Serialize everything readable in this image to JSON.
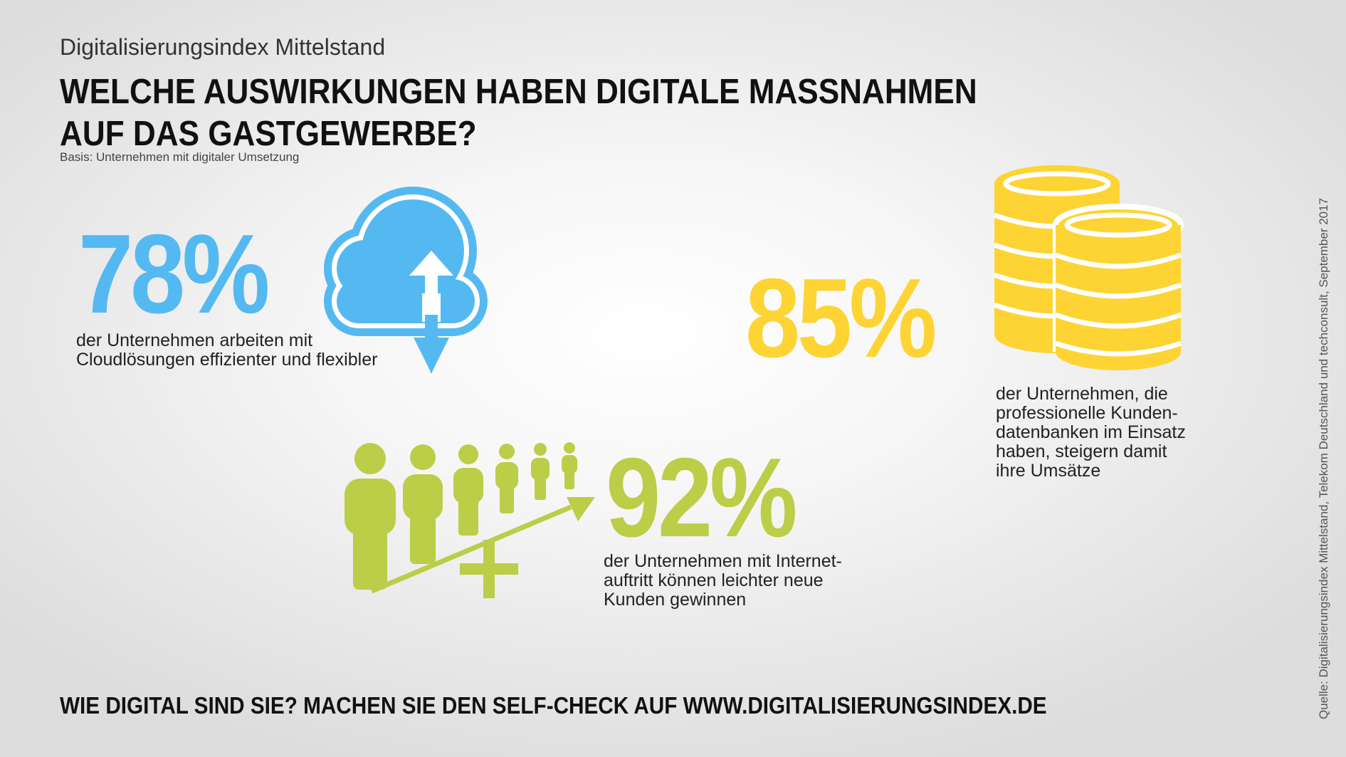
{
  "header": {
    "subtitle": "Digitalisierungsindex Mittelstand",
    "headline_line1": "WELCHE AUSWIRKUNGEN HABEN DIGITALE MASSNAHMEN",
    "headline_line2": "AUF DAS GASTGEWERBE?",
    "basis": "Basis: Unternehmen mit digitaler Umsetzung"
  },
  "stats": {
    "cloud": {
      "value": "78%",
      "text_line1": "der Unternehmen arbeiten mit",
      "text_line2": "Cloudlösungen effizienter und flexibler",
      "color": "#55b9f1",
      "icon": "cloud-upload-download-icon"
    },
    "database": {
      "value": "85%",
      "text_line1": "der Unternehmen, die",
      "text_line2": "professionelle Kunden-",
      "text_line3": "datenbanken im Einsatz",
      "text_line4": "haben, steigern damit",
      "text_line5": "ihre Umsätze",
      "color": "#fdd433",
      "icon": "coin-stacks-icon"
    },
    "internet": {
      "value": "92%",
      "text_line1": "der Unternehmen mit Internet-",
      "text_line2": "auftritt können leichter neue",
      "text_line3": "Kunden gewinnen",
      "color": "#bccd48",
      "icon": "people-growth-icon"
    }
  },
  "footer": {
    "cta": "WIE DIGITAL SIND SIE? MACHEN SIE DEN SELF-CHECK AUF WWW.DIGITALISIERUNGSINDEX.DE",
    "source": "Quelle: Digitalisierungsindex Mittelstand, Telekom Deutschland und techconsult, September 2017"
  }
}
